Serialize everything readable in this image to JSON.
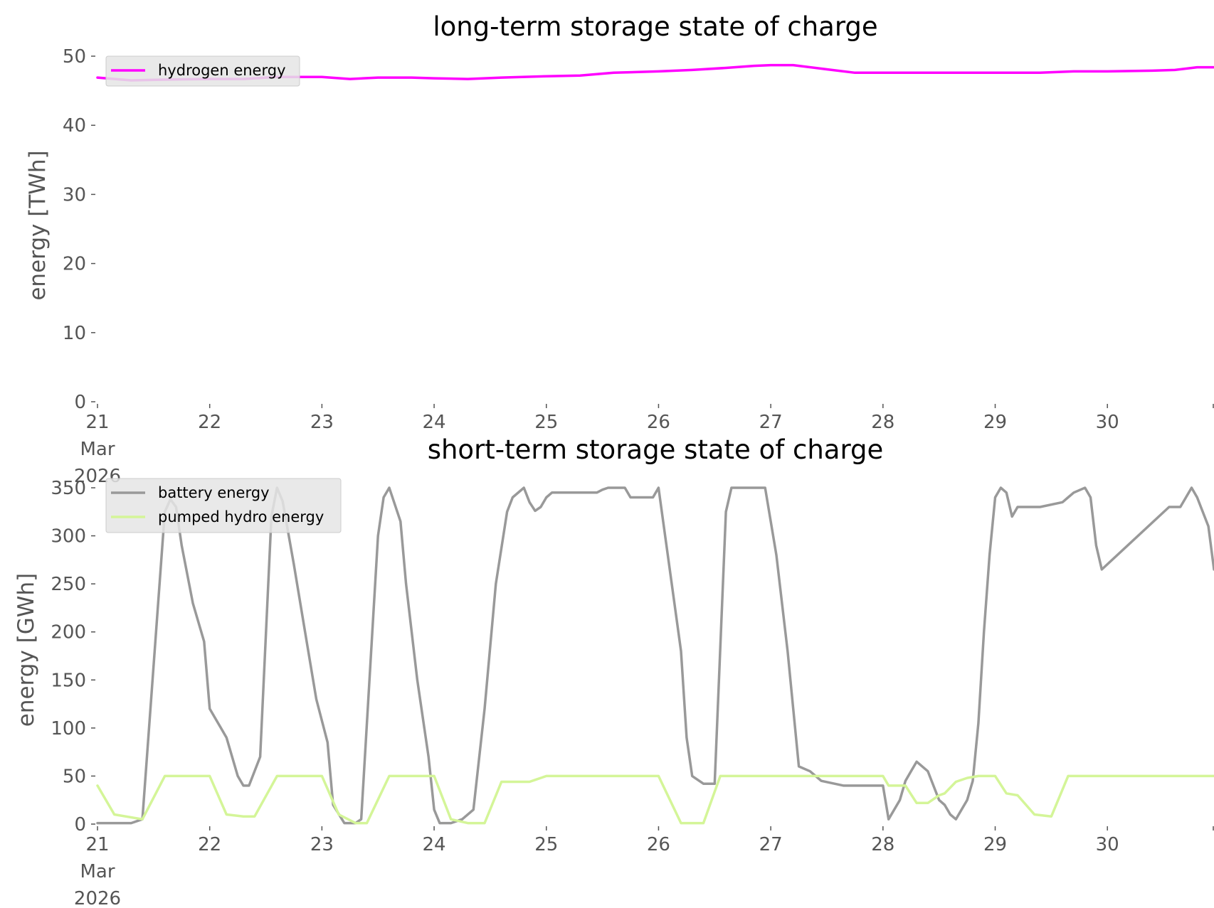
{
  "chart_data": [
    {
      "type": "line",
      "title": "long-term storage state of charge",
      "ylabel": "energy [TWh]",
      "xlabel": "",
      "ylim": [
        0,
        50
      ],
      "xlim": [
        0,
        9.95
      ],
      "yticks": [
        0,
        10,
        20,
        30,
        40,
        50
      ],
      "xticks": [
        {
          "x": 0,
          "lines": [
            "21",
            "Mar",
            "2026"
          ]
        },
        {
          "x": 1,
          "lines": [
            "22"
          ]
        },
        {
          "x": 2,
          "lines": [
            "23"
          ]
        },
        {
          "x": 3,
          "lines": [
            "24"
          ]
        },
        {
          "x": 4,
          "lines": [
            "25"
          ]
        },
        {
          "x": 5,
          "lines": [
            "26"
          ]
        },
        {
          "x": 6,
          "lines": [
            "27"
          ]
        },
        {
          "x": 7,
          "lines": [
            "28"
          ]
        },
        {
          "x": 8,
          "lines": [
            "29"
          ]
        },
        {
          "x": 9,
          "lines": [
            "30"
          ]
        }
      ],
      "grid": false,
      "legend_position": "upper-left",
      "series": [
        {
          "name": "hydrogen energy",
          "color": "#ff00ff",
          "x": [
            0,
            0.3,
            0.6,
            1.0,
            1.3,
            1.6,
            2.0,
            2.25,
            2.5,
            2.8,
            3.0,
            3.3,
            3.6,
            4.0,
            4.3,
            4.6,
            5.0,
            5.3,
            5.6,
            5.85,
            6.0,
            6.2,
            6.5,
            6.75,
            7.0,
            7.5,
            8.0,
            8.4,
            8.7,
            9.0,
            9.4,
            9.6,
            9.8,
            9.95
          ],
          "y": [
            46.9,
            46.5,
            46.6,
            46.7,
            46.7,
            47.0,
            47.0,
            46.7,
            46.9,
            46.9,
            46.8,
            46.7,
            46.9,
            47.1,
            47.2,
            47.6,
            47.8,
            48.0,
            48.3,
            48.6,
            48.7,
            48.7,
            48.1,
            47.6,
            47.6,
            47.6,
            47.6,
            47.6,
            47.8,
            47.8,
            47.9,
            48.0,
            48.4,
            48.4
          ]
        }
      ]
    },
    {
      "type": "line",
      "title": "short-term storage state of charge",
      "ylabel": "energy [GWh]",
      "xlabel": "",
      "ylim": [
        0,
        350
      ],
      "xlim": [
        0,
        9.95
      ],
      "yticks": [
        0,
        50,
        100,
        150,
        200,
        250,
        300,
        350
      ],
      "xticks": [
        {
          "x": 0,
          "lines": [
            "21",
            "Mar",
            "2026"
          ]
        },
        {
          "x": 1,
          "lines": [
            "22"
          ]
        },
        {
          "x": 2,
          "lines": [
            "23"
          ]
        },
        {
          "x": 3,
          "lines": [
            "24"
          ]
        },
        {
          "x": 4,
          "lines": [
            "25"
          ]
        },
        {
          "x": 5,
          "lines": [
            "26"
          ]
        },
        {
          "x": 6,
          "lines": [
            "27"
          ]
        },
        {
          "x": 7,
          "lines": [
            "28"
          ]
        },
        {
          "x": 8,
          "lines": [
            "29"
          ]
        },
        {
          "x": 9,
          "lines": [
            "30"
          ]
        }
      ],
      "grid": false,
      "legend_position": "upper-left",
      "series": [
        {
          "name": "battery energy",
          "color": "#999999",
          "x": [
            0,
            0.3,
            0.4,
            0.6,
            0.65,
            0.7,
            0.75,
            0.85,
            0.95,
            1.0,
            1.1,
            1.15,
            1.2,
            1.25,
            1.3,
            1.35,
            1.45,
            1.55,
            1.6,
            1.65,
            1.75,
            1.85,
            1.95,
            2.05,
            2.1,
            2.2,
            2.3,
            2.35,
            2.5,
            2.55,
            2.6,
            2.7,
            2.75,
            2.85,
            2.95,
            3.0,
            3.05,
            3.15,
            3.25,
            3.35,
            3.45,
            3.55,
            3.65,
            3.7,
            3.8,
            3.85,
            3.9,
            3.95,
            4.0,
            4.05,
            4.45,
            4.5,
            4.55,
            4.7,
            4.75,
            4.95,
            5.0,
            5.2,
            5.25,
            5.3,
            5.4,
            5.5,
            5.6,
            5.65,
            5.75,
            5.8,
            5.95,
            6.05,
            6.15,
            6.2,
            6.25,
            6.35,
            6.45,
            6.65,
            6.7,
            6.8,
            6.95,
            7.0,
            7.05,
            7.15,
            7.2,
            7.25,
            7.3,
            7.4,
            7.5,
            7.55,
            7.6,
            7.65,
            7.75,
            7.8,
            7.85,
            7.9,
            7.95,
            8.0,
            8.05,
            8.1,
            8.15,
            8.2,
            8.25,
            8.3,
            8.35,
            8.4,
            8.6,
            8.65,
            8.7,
            8.8,
            8.85,
            8.9,
            8.95,
            9.55,
            9.6,
            9.65,
            9.7,
            9.75,
            9.8,
            9.9,
            9.95
          ],
          "y": [
            1,
            1,
            5,
            325,
            338,
            330,
            290,
            230,
            190,
            120,
            100,
            90,
            70,
            50,
            40,
            40,
            70,
            320,
            350,
            336,
            270,
            200,
            130,
            85,
            20,
            1,
            1,
            5,
            300,
            340,
            350,
            315,
            250,
            150,
            70,
            15,
            1,
            1,
            5,
            15,
            120,
            250,
            325,
            340,
            350,
            335,
            326,
            330,
            340,
            345,
            345,
            348,
            350,
            350,
            340,
            340,
            350,
            180,
            90,
            50,
            42,
            42,
            325,
            350,
            350,
            350,
            350,
            280,
            180,
            120,
            60,
            55,
            45,
            40,
            40,
            40,
            40,
            40,
            5,
            25,
            45,
            55,
            65,
            55,
            25,
            20,
            10,
            5,
            25,
            45,
            105,
            200,
            280,
            340,
            350,
            345,
            320,
            330,
            330,
            330,
            330,
            330,
            335,
            340,
            345,
            350,
            340,
            290,
            265,
            330,
            330,
            330,
            340,
            350,
            340,
            310,
            265
          ]
        },
        {
          "name": "pumped hydro energy",
          "color": "#d4f598",
          "x": [
            0,
            0.15,
            0.4,
            0.6,
            0.85,
            1.0,
            1.15,
            1.3,
            1.4,
            1.6,
            1.75,
            2.0,
            2.15,
            2.3,
            2.4,
            2.6,
            2.75,
            3.0,
            3.15,
            3.3,
            3.45,
            3.6,
            3.85,
            3.9,
            4.0,
            4.2,
            4.35,
            4.5,
            4.65,
            4.8,
            5.0,
            5.2,
            5.3,
            5.4,
            5.55,
            5.65,
            5.8,
            6.0,
            6.15,
            6.3,
            6.4,
            6.55,
            6.7,
            6.85,
            7.0,
            7.05,
            7.2,
            7.3,
            7.4,
            7.5,
            7.55,
            7.65,
            7.75,
            7.85,
            7.95,
            8.0,
            8.1,
            8.2,
            8.35,
            8.5,
            8.65,
            8.8,
            9.0,
            9.2,
            9.4,
            9.6,
            9.8,
            9.95
          ],
          "y": [
            40,
            10,
            5,
            50,
            50,
            50,
            10,
            8,
            8,
            50,
            50,
            50,
            10,
            1,
            1,
            50,
            50,
            50,
            5,
            1,
            1,
            44,
            44,
            46,
            50,
            50,
            50,
            50,
            50,
            50,
            50,
            1,
            1,
            1,
            50,
            50,
            50,
            50,
            50,
            50,
            50,
            50,
            50,
            50,
            50,
            40,
            40,
            22,
            22,
            30,
            32,
            44,
            48,
            50,
            50,
            50,
            32,
            30,
            10,
            8,
            50,
            50,
            50,
            50,
            50,
            50,
            50,
            50
          ]
        }
      ]
    }
  ]
}
